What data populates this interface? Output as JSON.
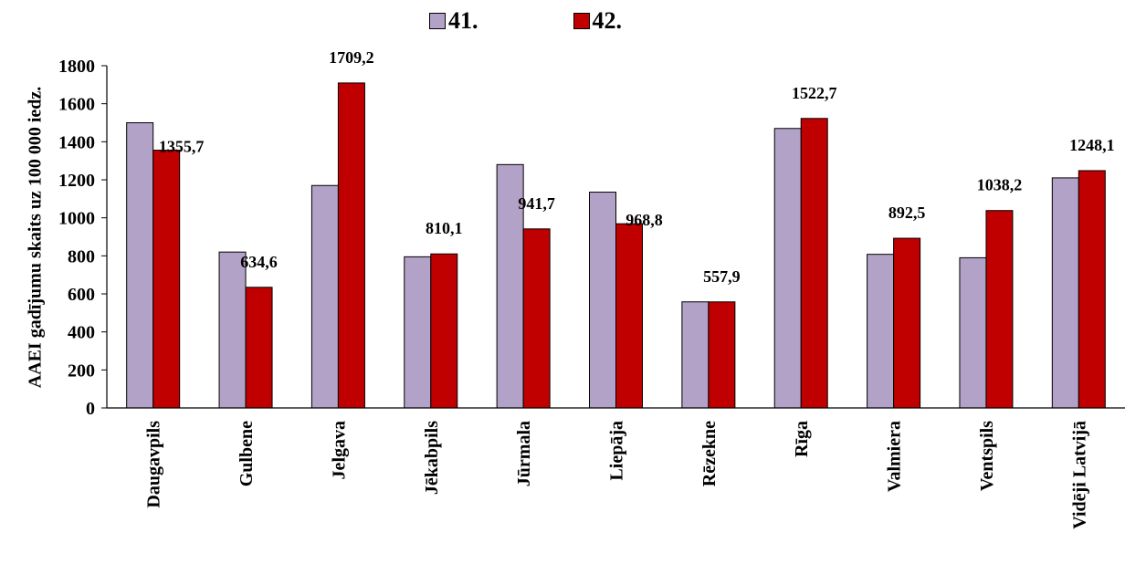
{
  "chart_data": {
    "type": "bar",
    "ylabel": "AAEI gadījumu skaits uz 100 000 iedz.",
    "ylim": [
      0,
      1800
    ],
    "yticks": [
      "0",
      "200",
      "400",
      "600",
      "800",
      "1000",
      "1200",
      "1400",
      "1600",
      "1800"
    ],
    "categories": [
      "Daugavpils",
      "Gulbene",
      "Jelgava",
      "Jēkabpils",
      "Jūrmala",
      "Liepāja",
      "Rēzekne",
      "Rīga",
      "Valmiera",
      "Ventspils",
      "Vidēji Latvijā"
    ],
    "series": [
      {
        "name": "41.",
        "color": "#b3a2c7",
        "values": [
          1500,
          820,
          1170,
          795,
          1280,
          1135,
          558,
          1470,
          808,
          790,
          1210
        ]
      },
      {
        "name": "42.",
        "color": "#c00000",
        "values": [
          1355.7,
          634.6,
          1709.2,
          810.1,
          941.7,
          968.8,
          557.9,
          1522.7,
          892.5,
          1038.2,
          1248.1
        ],
        "labels": [
          "1355,7",
          "634,6",
          "1709,2",
          "810,1",
          "941,7",
          "968,8",
          "557,9",
          "1522,7",
          "892,5",
          "1038,2",
          "1248,1"
        ]
      }
    ],
    "legend": "top-center",
    "grid": false
  }
}
